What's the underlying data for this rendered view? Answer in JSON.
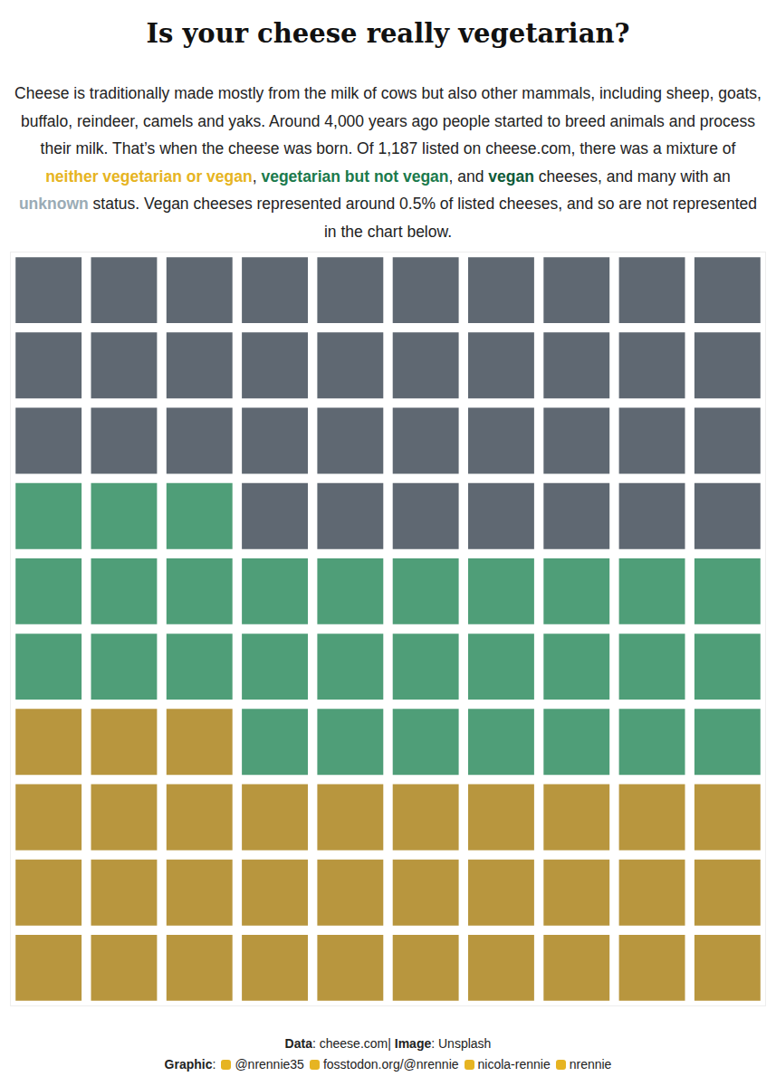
{
  "chart_data": {
    "type": "waffle",
    "title": "Is your cheese really vegetarian?",
    "subtitle": [
      {
        "text": "Cheese is traditionally made mostly from the milk of cows but also other mammals, including sheep, goats, buffalo, reindeer, camels and yaks. Around 4,000 years ago people started to breed animals and process their milk. That’s when the cheese was born. Of 1,187 listed on cheese.com, there was a mixture of "
      },
      {
        "text": "neither vegetarian or vegan",
        "color": "#e6b422"
      },
      {
        "text": ", "
      },
      {
        "text": "vegetarian but not vegan",
        "color": "#1b7a4c"
      },
      {
        "text": ", and "
      },
      {
        "text": "vegan",
        "color": "#0d5a38"
      },
      {
        "text": " cheeses, and many with an "
      },
      {
        "text": "unknown",
        "color": "#9aabb5"
      },
      {
        "text": " status. Vegan cheeses represented around 0.5% of listed cheeses, and so are not represented in the chart below."
      }
    ],
    "categories": [
      "neither vegetarian or vegan",
      "vegetarian but not vegan",
      "unknown"
    ],
    "values": [
      33,
      30,
      37
    ],
    "colors": [
      "#b8963e",
      "#4f9e78",
      "#5f6872"
    ],
    "tick_labels": false,
    "caption": [
      [
        {
          "label": "Data",
          "text": ": cheese.com| "
        },
        {
          "label": "Image",
          "text": ": Unsplash"
        }
      ],
      [
        {
          "label": "Graphic",
          "text": ":"
        },
        {
          "text": "@nrennie35"
        },
        {
          "text": "fosstodon.org/@nrennie"
        },
        {
          "text": "nicola-rennie"
        },
        {
          "text": "nrennie"
        }
      ]
    ]
  }
}
